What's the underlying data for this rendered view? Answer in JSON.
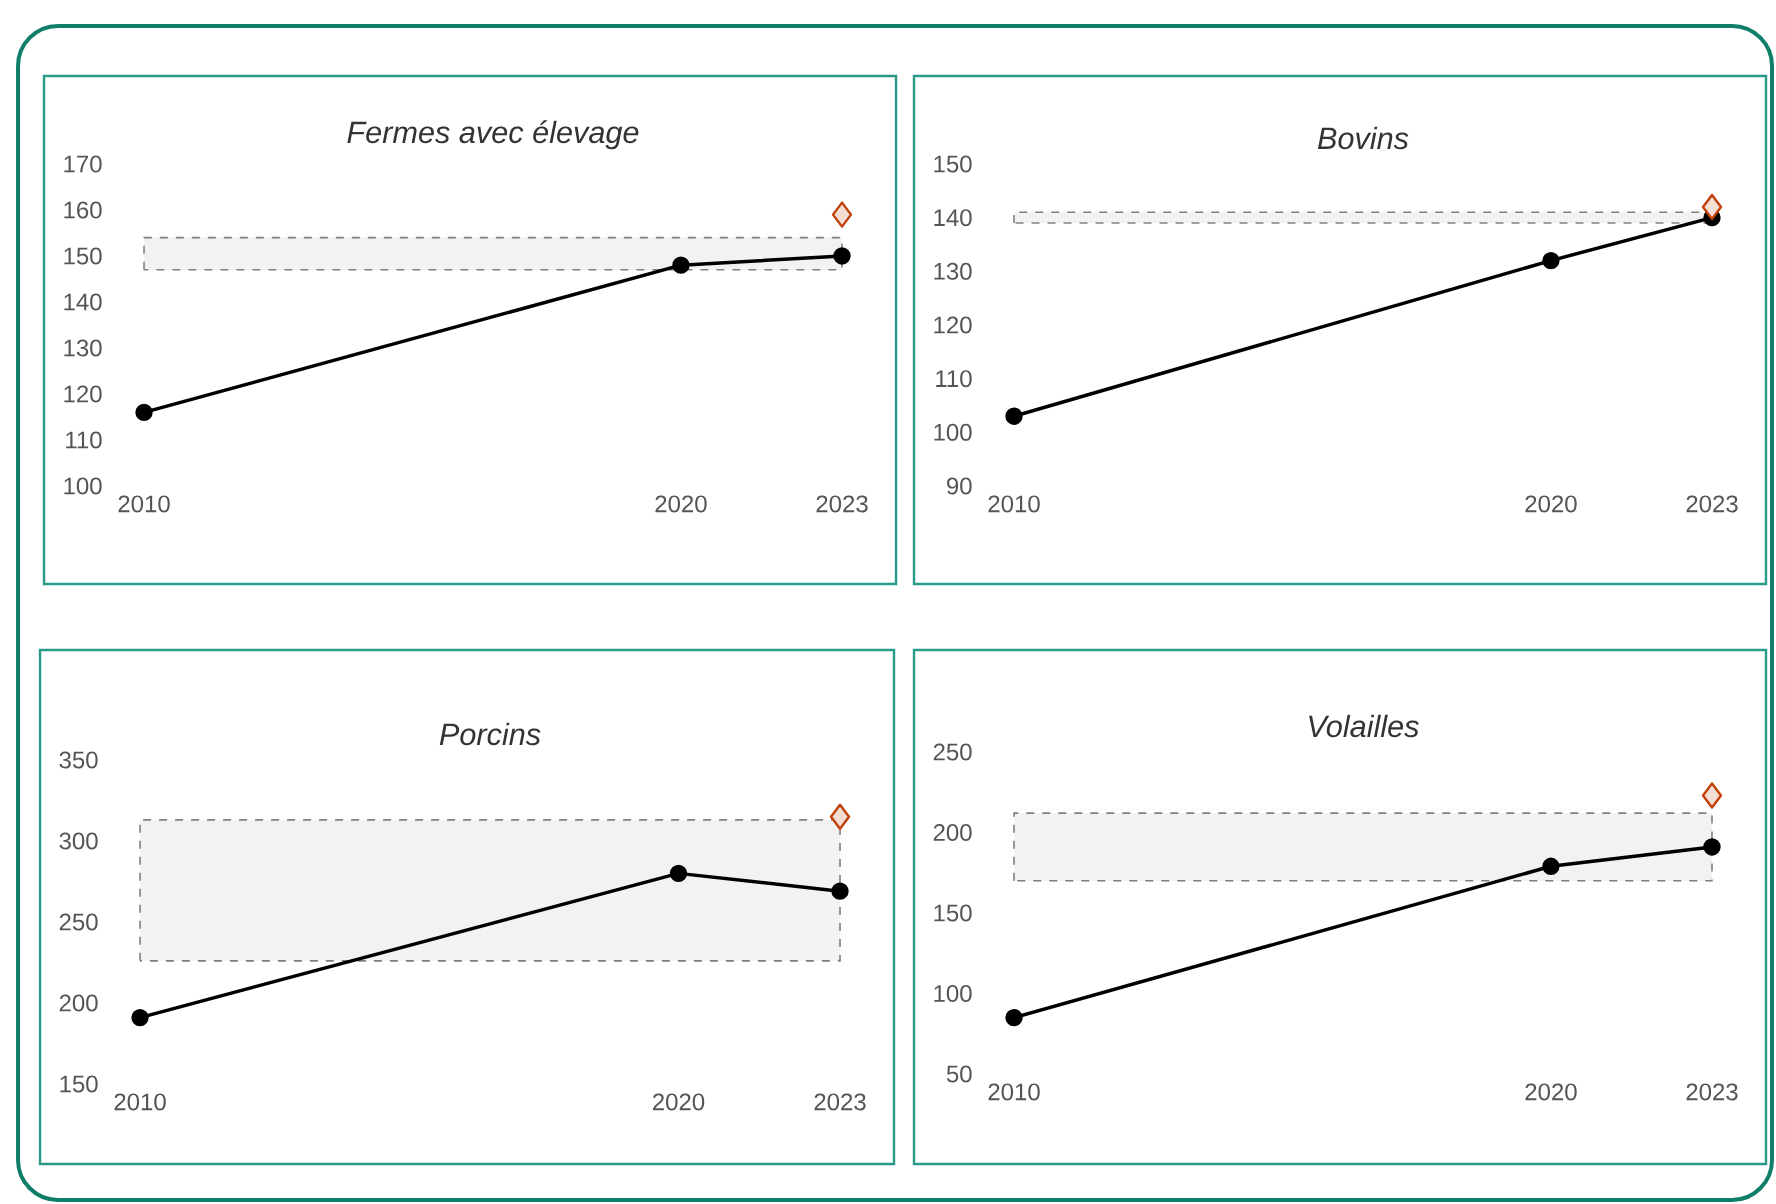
{
  "chart_data": [
    {
      "type": "line",
      "title": "Fermes avec élevage",
      "x": [
        2010,
        2020,
        2023
      ],
      "xlim": [
        2010,
        2023
      ],
      "xticks": [
        2010,
        2020,
        2023
      ],
      "ylim": [
        100,
        170
      ],
      "yticks": [
        100,
        110,
        120,
        130,
        140,
        150,
        160,
        170
      ],
      "bands": [
        {
          "axis": "y",
          "from": 147,
          "to": 154,
          "color": "#f2f2f2"
        }
      ],
      "series": [
        {
          "color": "#000000",
          "marker": "circle",
          "values": [
            116,
            148,
            150
          ]
        },
        {
          "type": "scatter",
          "color": "#c0400a",
          "marker": "diamond",
          "values": [
            null,
            null,
            159
          ]
        }
      ]
    },
    {
      "type": "line",
      "title": "Bovins",
      "x": [
        2010,
        2020,
        2023
      ],
      "xlim": [
        2010,
        2023
      ],
      "xticks": [
        2010,
        2020,
        2023
      ],
      "ylim": [
        90,
        150
      ],
      "yticks": [
        90,
        100,
        110,
        120,
        130,
        140,
        150
      ],
      "bands": [
        {
          "axis": "y",
          "from": 139,
          "to": 141,
          "color": "#f2f2f2"
        }
      ],
      "series": [
        {
          "color": "#000000",
          "marker": "circle",
          "values": [
            103,
            132,
            140
          ]
        },
        {
          "type": "scatter",
          "color": "#c0400a",
          "marker": "diamond",
          "values": [
            null,
            null,
            142
          ]
        }
      ]
    },
    {
      "type": "line",
      "title": "Porcins",
      "x": [
        2010,
        2020,
        2023
      ],
      "xlim": [
        2010,
        2023
      ],
      "xticks": [
        2010,
        2020,
        2023
      ],
      "ylim": [
        150,
        350
      ],
      "yticks": [
        150,
        200,
        250,
        300,
        350
      ],
      "bands": [
        {
          "axis": "y",
          "from": 226,
          "to": 313,
          "color": "#f2f2f2"
        }
      ],
      "series": [
        {
          "color": "#000000",
          "marker": "circle",
          "values": [
            191,
            280,
            269
          ]
        },
        {
          "type": "scatter",
          "color": "#c0400a",
          "marker": "diamond",
          "values": [
            null,
            null,
            315
          ]
        }
      ]
    },
    {
      "type": "line",
      "title": "Volailles",
      "x": [
        2010,
        2020,
        2023
      ],
      "xlim": [
        2010,
        2023
      ],
      "xticks": [
        2010,
        2020,
        2023
      ],
      "ylim": [
        50,
        250
      ],
      "yticks": [
        50,
        100,
        150,
        200,
        250
      ],
      "bands": [
        {
          "axis": "y",
          "from": 170,
          "to": 212,
          "color": "#f2f2f2"
        }
      ],
      "series": [
        {
          "color": "#000000",
          "marker": "circle",
          "values": [
            85,
            179,
            191
          ]
        },
        {
          "type": "scatter",
          "color": "#c0400a",
          "marker": "diamond",
          "values": [
            null,
            null,
            223
          ]
        }
      ]
    }
  ]
}
